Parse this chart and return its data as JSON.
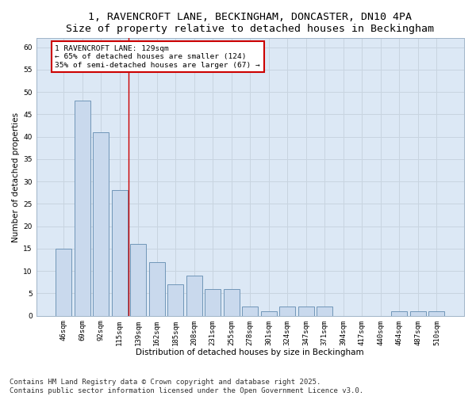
{
  "title_line1": "1, RAVENCROFT LANE, BECKINGHAM, DONCASTER, DN10 4PA",
  "title_line2": "Size of property relative to detached houses in Beckingham",
  "xlabel": "Distribution of detached houses by size in Beckingham",
  "ylabel": "Number of detached properties",
  "categories": [
    "46sqm",
    "69sqm",
    "92sqm",
    "115sqm",
    "139sqm",
    "162sqm",
    "185sqm",
    "208sqm",
    "231sqm",
    "255sqm",
    "278sqm",
    "301sqm",
    "324sqm",
    "347sqm",
    "371sqm",
    "394sqm",
    "417sqm",
    "440sqm",
    "464sqm",
    "487sqm",
    "510sqm"
  ],
  "values": [
    15,
    48,
    41,
    28,
    16,
    12,
    7,
    9,
    6,
    6,
    2,
    1,
    2,
    2,
    2,
    0,
    0,
    0,
    1,
    1,
    1
  ],
  "bar_color": "#c9d9ed",
  "bar_edge_color": "#7096b8",
  "grid_color": "#c8d4e0",
  "background_color": "#dce8f5",
  "figure_background": "#ffffff",
  "property_line_x": 3.5,
  "annotation_text_line1": "1 RAVENCROFT LANE: 129sqm",
  "annotation_text_line2": "← 65% of detached houses are smaller (124)",
  "annotation_text_line3": "35% of semi-detached houses are larger (67) →",
  "annotation_box_color": "#ffffff",
  "annotation_box_edge_color": "#cc0000",
  "property_line_color": "#cc0000",
  "ylim": [
    0,
    62
  ],
  "yticks": [
    0,
    5,
    10,
    15,
    20,
    25,
    30,
    35,
    40,
    45,
    50,
    55,
    60
  ],
  "footnote_line1": "Contains HM Land Registry data © Crown copyright and database right 2025.",
  "footnote_line2": "Contains public sector information licensed under the Open Government Licence v3.0.",
  "footnote_fontsize": 6.5,
  "title_fontsize": 9.5,
  "axis_label_fontsize": 7.5,
  "tick_fontsize": 6.5,
  "annotation_fontsize": 6.8
}
